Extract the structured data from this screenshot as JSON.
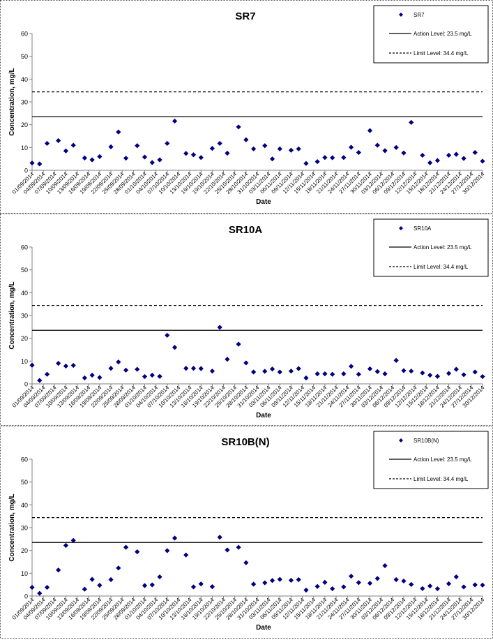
{
  "chart_data": [
    {
      "type": "scatter",
      "title": "SR7",
      "xlabel": "Date",
      "ylabel": "Concentration, mg/L",
      "ylim": [
        0,
        60
      ],
      "yticks": [
        0,
        10,
        20,
        30,
        40,
        50,
        60
      ],
      "xlim": [
        "01/09/2014",
        "30/12/2014"
      ],
      "grid": false,
      "legend_position": "top-right",
      "legend": [
        "SR7",
        "Action Level: 23.5 mg/L",
        "Limit Level: 34.4 mg/L"
      ],
      "action_level": 23.5,
      "limit_level": 34.4,
      "tick_labels": [
        "01/09/2014",
        "04/09/2014",
        "07/09/2014",
        "10/09/2014",
        "13/09/2014",
        "16/09/2014",
        "19/09/2014",
        "22/09/2014",
        "25/09/2014",
        "28/09/2014",
        "01/10/2014",
        "04/10/2014",
        "07/10/2014",
        "10/10/2014",
        "13/10/2014",
        "16/10/2014",
        "19/10/2014",
        "22/10/2014",
        "25/10/2014",
        "28/10/2014",
        "31/10/2014",
        "03/11/2014",
        "06/11/2014",
        "09/11/2014",
        "12/11/2014",
        "15/11/2014",
        "18/11/2014",
        "21/11/2014",
        "24/11/2014",
        "27/11/2014",
        "30/11/2014",
        "03/12/2014",
        "06/12/2014",
        "09/12/2014",
        "12/12/2014",
        "15/12/2014",
        "18/12/2014",
        "21/12/2014",
        "24/12/2014",
        "27/12/2014",
        "30/12/2014"
      ],
      "series": [
        {
          "name": "SR7",
          "x": [
            "01/09/2014",
            "03/09/2014",
            "05/09/2014",
            "08/09/2014",
            "10/09/2014",
            "12/09/2014",
            "15/09/2014",
            "17/09/2014",
            "19/09/2014",
            "22/09/2014",
            "24/09/2014",
            "26/09/2014",
            "29/09/2014",
            "01/10/2014",
            "03/10/2014",
            "05/10/2014",
            "07/10/2014",
            "09/10/2014",
            "12/10/2014",
            "14/10/2014",
            "16/10/2014",
            "19/10/2014",
            "21/10/2014",
            "23/10/2014",
            "26/10/2014",
            "28/10/2014",
            "30/10/2014",
            "02/11/2014",
            "04/11/2014",
            "06/11/2014",
            "09/11/2014",
            "11/11/2014",
            "13/11/2014",
            "16/11/2014",
            "18/11/2014",
            "20/11/2014",
            "23/11/2014",
            "25/11/2014",
            "27/11/2014",
            "30/11/2014",
            "02/12/2014",
            "04/12/2014",
            "07/12/2014",
            "09/12/2014",
            "11/12/2014",
            "14/12/2014",
            "16/12/2014",
            "18/12/2014",
            "21/12/2014",
            "23/12/2014",
            "25/12/2014",
            "28/12/2014",
            "30/12/2014"
          ],
          "y": [
            3.2,
            2.8,
            11.8,
            13.0,
            8.5,
            11.0,
            5.4,
            4.6,
            6.0,
            10.3,
            16.8,
            5.3,
            10.8,
            5.8,
            3.4,
            4.6,
            11.8,
            21.6,
            7.4,
            6.8,
            5.6,
            9.6,
            11.8,
            7.5,
            19.0,
            13.4,
            9.4,
            10.8,
            5.0,
            9.4,
            8.8,
            9.4,
            3.0,
            3.8,
            5.6,
            5.5,
            5.6,
            10.1,
            7.8,
            17.4,
            11.0,
            8.6,
            10.0,
            7.6,
            21.0,
            6.6,
            3.3,
            4.3,
            6.6,
            7.0,
            5.2,
            7.8,
            4.0
          ]
        }
      ]
    },
    {
      "type": "scatter",
      "title": "SR10A",
      "xlabel": "Date",
      "ylabel": "Concentration, mg/L",
      "ylim": [
        0,
        60
      ],
      "yticks": [
        0,
        10,
        20,
        30,
        40,
        50,
        60
      ],
      "xlim": [
        "01/09/2014",
        "30/12/2014"
      ],
      "grid": false,
      "legend_position": "top-right",
      "legend": [
        "SR10A",
        "Action Level: 23.5 mg/L",
        "Limit Level: 34.4 mg/L"
      ],
      "action_level": 23.5,
      "limit_level": 34.4,
      "tick_labels": [
        "01/09/2014",
        "04/09/2014",
        "07/09/2014",
        "10/09/2014",
        "13/09/2014",
        "16/09/2014",
        "19/09/2014",
        "22/09/2014",
        "25/09/2014",
        "28/09/2014",
        "01/10/2014",
        "04/10/2014",
        "07/10/2014",
        "10/10/2014",
        "13/10/2014",
        "16/10/2014",
        "19/10/2014",
        "22/10/2014",
        "25/10/2014",
        "28/10/2014",
        "31/10/2014",
        "03/11/2014",
        "06/11/2014",
        "09/11/2014",
        "12/11/2014",
        "15/11/2014",
        "18/11/2014",
        "21/11/2014",
        "24/11/2014",
        "27/11/2014",
        "30/11/2014",
        "03/12/2014",
        "06/12/2014",
        "09/12/2014",
        "12/12/2014",
        "15/12/2014",
        "18/12/2014",
        "21/12/2014",
        "24/12/2014",
        "27/12/2014",
        "30/12/2014"
      ],
      "series": [
        {
          "name": "SR10A",
          "x": [
            "01/09/2014",
            "03/09/2014",
            "05/09/2014",
            "08/09/2014",
            "10/09/2014",
            "12/09/2014",
            "15/09/2014",
            "17/09/2014",
            "19/09/2014",
            "22/09/2014",
            "24/09/2014",
            "26/09/2014",
            "29/09/2014",
            "01/10/2014",
            "03/10/2014",
            "05/10/2014",
            "07/10/2014",
            "09/10/2014",
            "12/10/2014",
            "14/10/2014",
            "16/10/2014",
            "19/10/2014",
            "21/10/2014",
            "23/10/2014",
            "26/10/2014",
            "28/10/2014",
            "30/10/2014",
            "02/11/2014",
            "04/11/2014",
            "06/11/2014",
            "09/11/2014",
            "11/11/2014",
            "13/11/2014",
            "16/11/2014",
            "18/11/2014",
            "20/11/2014",
            "23/11/2014",
            "25/11/2014",
            "27/11/2014",
            "30/11/2014",
            "02/12/2014",
            "04/12/2014",
            "07/12/2014",
            "09/12/2014",
            "11/12/2014",
            "14/12/2014",
            "16/12/2014",
            "18/12/2014",
            "21/12/2014",
            "23/12/2014",
            "25/12/2014",
            "28/12/2014",
            "30/12/2014"
          ],
          "y": [
            8.2,
            1.5,
            4.2,
            9.0,
            7.8,
            8.1,
            2.6,
            3.8,
            2.8,
            6.8,
            9.6,
            6.0,
            6.4,
            3.2,
            3.8,
            3.3,
            21.3,
            16.0,
            6.8,
            6.8,
            6.7,
            5.6,
            24.8,
            10.8,
            17.4,
            9.2,
            5.2,
            5.5,
            6.5,
            5.2,
            5.6,
            6.7,
            2.6,
            4.4,
            4.4,
            4.2,
            4.4,
            7.7,
            4.2,
            6.6,
            5.4,
            4.4,
            10.3,
            5.8,
            5.6,
            4.8,
            3.8,
            3.3,
            4.6,
            6.4,
            4.0,
            5.2,
            3.2
          ]
        }
      ]
    },
    {
      "type": "scatter",
      "title": "SR10B(N)",
      "xlabel": "Date",
      "ylabel": "Concentration, mg/L",
      "ylim": [
        0,
        60
      ],
      "yticks": [
        0,
        10,
        20,
        30,
        40,
        50,
        60
      ],
      "xlim": [
        "01/09/2014",
        "30/12/2014"
      ],
      "grid": false,
      "legend_position": "top-right",
      "legend": [
        "SR10B(N)",
        "Action Level: 23.5 mg/L",
        "Limit Level: 34.4 mg/L"
      ],
      "action_level": 23.5,
      "limit_level": 34.4,
      "tick_labels": [
        "01/09/2014",
        "04/09/2014",
        "07/09/2014",
        "10/09/2014",
        "13/09/2014",
        "16/09/2014",
        "19/09/2014",
        "22/09/2014",
        "25/09/2014",
        "28/09/2014",
        "01/10/2014",
        "04/10/2014",
        "07/10/2014",
        "10/10/2014",
        "13/10/2014",
        "16/10/2014",
        "19/10/2014",
        "22/10/2014",
        "25/10/2014",
        "28/10/2014",
        "31/10/2014",
        "03/11/2014",
        "06/11/2014",
        "09/11/2014",
        "12/11/2014",
        "15/11/2014",
        "18/11/2014",
        "21/11/2014",
        "24/11/2014",
        "27/11/2014",
        "30/11/2014",
        "03/12/2014",
        "06/12/2014",
        "09/12/2014",
        "12/12/2014",
        "15/12/2014",
        "18/12/2014",
        "21/12/2014",
        "24/12/2014",
        "27/12/2014",
        "30/12/2014"
      ],
      "series": [
        {
          "name": "SR10B(N)",
          "x": [
            "01/09/2014",
            "03/09/2014",
            "05/09/2014",
            "08/09/2014",
            "10/09/2014",
            "12/09/2014",
            "15/09/2014",
            "17/09/2014",
            "19/09/2014",
            "22/09/2014",
            "24/09/2014",
            "26/09/2014",
            "29/09/2014",
            "01/10/2014",
            "03/10/2014",
            "05/10/2014",
            "07/10/2014",
            "09/10/2014",
            "12/10/2014",
            "14/10/2014",
            "16/10/2014",
            "19/10/2014",
            "21/10/2014",
            "23/10/2014",
            "26/10/2014",
            "28/10/2014",
            "30/10/2014",
            "02/11/2014",
            "04/11/2014",
            "06/11/2014",
            "09/11/2014",
            "11/11/2014",
            "13/11/2014",
            "16/11/2014",
            "18/11/2014",
            "20/11/2014",
            "23/11/2014",
            "25/11/2014",
            "27/11/2014",
            "30/11/2014",
            "02/12/2014",
            "04/12/2014",
            "07/12/2014",
            "09/12/2014",
            "11/12/2014",
            "14/12/2014",
            "16/12/2014",
            "18/12/2014",
            "21/12/2014",
            "23/12/2014",
            "25/12/2014",
            "28/12/2014",
            "30/12/2014"
          ],
          "y": [
            3.8,
            1.2,
            3.8,
            11.4,
            22.2,
            24.4,
            3.0,
            7.3,
            4.7,
            7.2,
            12.3,
            21.4,
            19.4,
            4.6,
            4.9,
            8.4,
            19.9,
            25.4,
            18.0,
            4.0,
            5.3,
            4.1,
            25.8,
            20.2,
            21.4,
            14.6,
            5.2,
            5.8,
            6.8,
            7.3,
            6.9,
            7.2,
            2.6,
            4.2,
            6.0,
            3.2,
            4.0,
            8.7,
            5.9,
            5.6,
            7.7,
            13.3,
            7.2,
            6.6,
            5.1,
            3.3,
            4.4,
            3.2,
            5.4,
            8.4,
            4.0,
            4.9,
            4.8
          ]
        }
      ]
    }
  ]
}
